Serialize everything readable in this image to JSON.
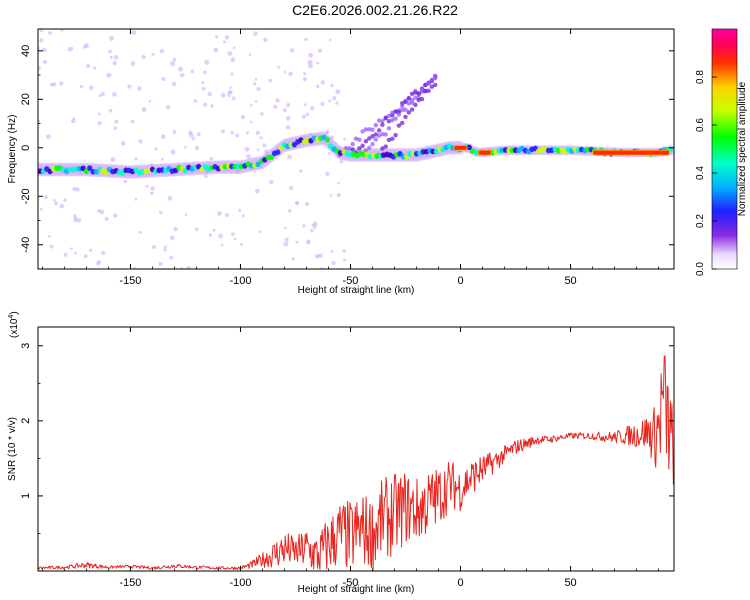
{
  "title": "C2E6.2026.002.21.26.R22",
  "chart_data": [
    {
      "type": "heatmap",
      "name": "spectrogram",
      "xlabel": "Height of straight line (km)",
      "ylabel": "Frequency (Hz)",
      "xlim": [
        -192,
        97
      ],
      "ylim": [
        -50,
        49
      ],
      "xticks": [
        -150,
        -100,
        -50,
        0,
        50
      ],
      "yticks": [
        -40,
        -20,
        0,
        20,
        40
      ],
      "ridge": {
        "x": [
          -190,
          -170,
          -150,
          -130,
          -110,
          -100,
          -90,
          -80,
          -70,
          -62,
          -55,
          -50,
          -45,
          -40,
          -30,
          -20,
          -10,
          -5,
          0,
          3,
          8,
          20,
          50,
          75,
          90,
          95
        ],
        "y": [
          -9,
          -9,
          -10,
          -9,
          -8,
          -8,
          -6,
          1,
          3,
          4,
          -2,
          -3,
          -3,
          -3,
          -3,
          -3,
          -1,
          0,
          0,
          0,
          -2,
          -1,
          -1,
          -2,
          -2,
          -1
        ]
      },
      "peak_segments": [
        {
          "x": [
            -3,
            3
          ],
          "y": 0
        },
        {
          "x": [
            8,
            14
          ],
          "y": -2
        },
        {
          "x": [
            60,
            95
          ],
          "y": -2
        }
      ],
      "colorbar": {
        "label": "Normalized spectral amplitude",
        "range": [
          0,
          1
        ],
        "ticks": [
          0.0,
          0.2,
          0.4,
          0.6,
          0.8
        ]
      }
    },
    {
      "type": "line",
      "name": "snr",
      "xlabel": "Height of straight line (km)",
      "ylabel": "SNR (10 * v/v)",
      "yscale_label": "(x10",
      "yscale_exp": "4",
      "yscale_suffix": ")",
      "xlim": [
        -192,
        97
      ],
      "ylim": [
        0,
        3.25
      ],
      "xticks": [
        -150,
        -100,
        -50,
        0,
        50
      ],
      "yticks": [
        1,
        2,
        3
      ],
      "series": [
        {
          "name": "SNR",
          "color": "#e8261f",
          "x": [
            -192,
            -180,
            -170,
            -160,
            -150,
            -140,
            -130,
            -120,
            -110,
            -100,
            -95,
            -90,
            -85,
            -80,
            -75,
            -70,
            -65,
            -60,
            -55,
            -50,
            -45,
            -40,
            -35,
            -30,
            -25,
            -20,
            -15,
            -10,
            -5,
            0,
            5,
            10,
            15,
            20,
            25,
            30,
            35,
            40,
            50,
            60,
            70,
            75,
            80,
            85,
            88,
            90,
            92,
            94,
            96,
            97
          ],
          "y": [
            0.04,
            0.05,
            0.08,
            0.05,
            0.06,
            0.04,
            0.07,
            0.05,
            0.04,
            0.04,
            0.08,
            0.15,
            0.22,
            0.3,
            0.25,
            0.3,
            0.2,
            0.35,
            0.5,
            0.45,
            0.55,
            0.5,
            0.7,
            0.75,
            0.85,
            0.8,
            0.9,
            1.0,
            1.15,
            1.1,
            1.25,
            1.35,
            1.45,
            1.55,
            1.65,
            1.7,
            1.75,
            1.75,
            1.8,
            1.8,
            1.78,
            1.8,
            1.82,
            1.85,
            1.8,
            1.9,
            2.3,
            2.0,
            1.7,
            1.6
          ],
          "variability": [
            0.02,
            0.02,
            0.04,
            0.02,
            0.02,
            0.02,
            0.03,
            0.02,
            0.02,
            0.02,
            0.05,
            0.1,
            0.18,
            0.25,
            0.2,
            0.3,
            0.3,
            0.4,
            0.45,
            0.5,
            0.5,
            0.5,
            0.55,
            0.55,
            0.5,
            0.45,
            0.45,
            0.4,
            0.35,
            0.3,
            0.25,
            0.2,
            0.15,
            0.12,
            0.1,
            0.08,
            0.06,
            0.05,
            0.04,
            0.05,
            0.08,
            0.12,
            0.18,
            0.25,
            0.4,
            0.6,
            0.9,
            0.8,
            0.6,
            0.5
          ]
        }
      ]
    }
  ]
}
